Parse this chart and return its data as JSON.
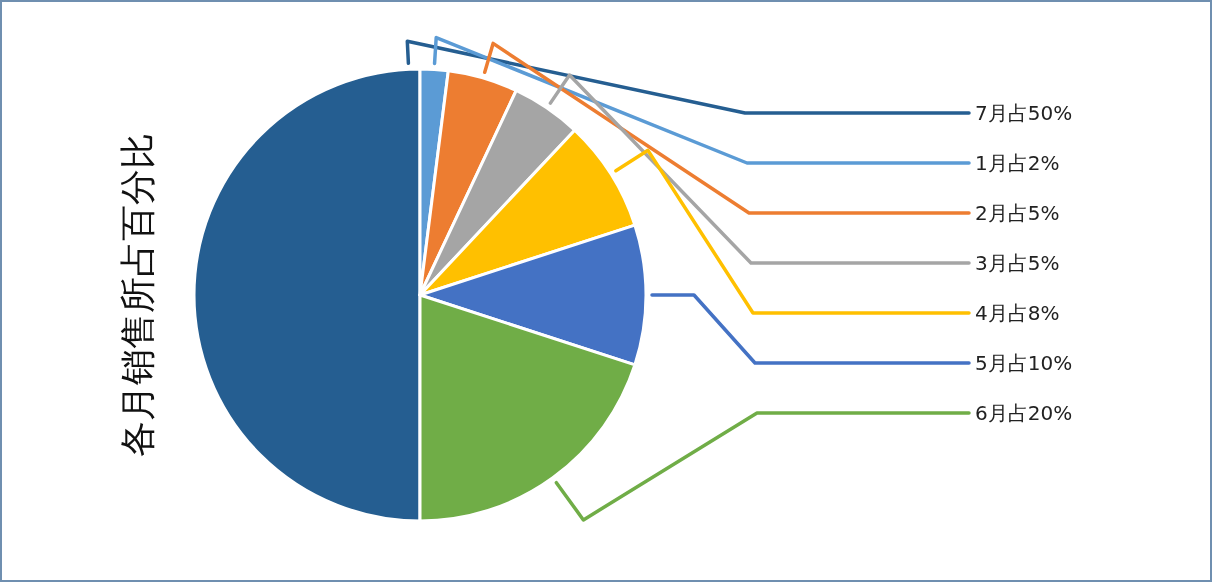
{
  "chart_data": {
    "type": "pie",
    "title": "各月销售所占百分比",
    "categories": [
      "7月占50%",
      "1月占2%",
      "2月占5%",
      "3月占5%",
      "4月占8%",
      "5月占10%",
      "6月占20%"
    ],
    "values": [
      50,
      2,
      5,
      5,
      8,
      10,
      20
    ],
    "colors": [
      "#255e91",
      "#5b9bd5",
      "#ed7d31",
      "#a5a5a5",
      "#ffc000",
      "#4472c4",
      "#70ad47"
    ],
    "legend": false
  }
}
